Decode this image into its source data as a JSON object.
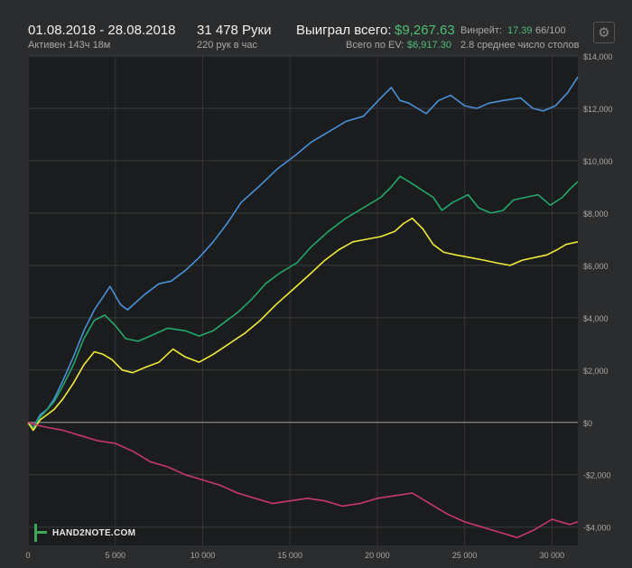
{
  "header": {
    "date_range": "01.08.2018 - 28.08.2018",
    "active_time": "Активен 143ч 18м",
    "hands": "31 478 Руки",
    "hands_per_hour": "220 рук в час",
    "won_total_label": "Выиграл всего:",
    "won_total_value": "$9,267.63",
    "ev_total_label": "Всего по EV:",
    "ev_total_value": "$6,917.30",
    "winrate_label": "Винрейт:",
    "winrate_value": "17.39",
    "winrate_extra": "66/100",
    "avg_tables": "2.8 среднее число столов"
  },
  "logo": {
    "text": "HAND2NOTE.COM"
  },
  "colors": {
    "background": "#2b2c2e",
    "plot_bg": "#1b1c1d",
    "blue": "#4a90d9",
    "green": "#22a86a",
    "yellow": "#f0ea3a",
    "pink": "#c8386e",
    "accent_green": "#4fbf75"
  },
  "chart_data": {
    "type": "line",
    "xlim": [
      0,
      31478
    ],
    "ylim": [
      -4700,
      14000
    ],
    "grid": true,
    "x_ticks": [
      0,
      5000,
      10000,
      15000,
      20000,
      25000,
      30000
    ],
    "x_tick_labels": [
      "0",
      "5 000",
      "10 000",
      "15 000",
      "20 000",
      "25 000",
      "30 000"
    ],
    "y_ticks": [
      -4000,
      -2000,
      0,
      2000,
      4000,
      6000,
      8000,
      10000,
      12000,
      14000
    ],
    "y_tick_labels": [
      "-$4,000",
      "-$2,000",
      "$0",
      "$2,000",
      "$4,000",
      "$6,000",
      "$8,000",
      "$10,000",
      "$12,000",
      "$14,000"
    ],
    "series": [
      {
        "color": "#4a90d9",
        "x": [
          0,
          300,
          700,
          1100,
          1500,
          2000,
          2600,
          3200,
          3800,
          4300,
          4700,
          5300,
          5700,
          6200,
          6700,
          7500,
          8200,
          9000,
          9800,
          10600,
          11400,
          12200,
          13200,
          14300,
          15300,
          16200,
          17200,
          18200,
          19200,
          20200,
          20800,
          21300,
          21800,
          22300,
          22800,
          23500,
          24200,
          25000,
          25700,
          26400,
          27200,
          28200,
          28900,
          29500,
          30200,
          30900,
          31478
        ],
        "y": [
          0,
          -200,
          300,
          500,
          900,
          1600,
          2500,
          3500,
          4300,
          4800,
          5200,
          4500,
          4300,
          4600,
          4900,
          5300,
          5400,
          5800,
          6300,
          6900,
          7600,
          8400,
          9000,
          9700,
          10200,
          10700,
          11100,
          11500,
          11700,
          12400,
          12800,
          12300,
          12200,
          12000,
          11800,
          12300,
          12500,
          12100,
          12000,
          12200,
          12300,
          12400,
          12000,
          11900,
          12100,
          12600,
          13200
        ]
      },
      {
        "color": "#22a86a",
        "x": [
          0,
          300,
          700,
          1100,
          1500,
          2000,
          2600,
          3200,
          3800,
          4400,
          5000,
          5600,
          6300,
          7000,
          8000,
          9000,
          9800,
          10600,
          11400,
          12000,
          12800,
          13600,
          14400,
          15400,
          16200,
          17200,
          18200,
          19200,
          20200,
          20800,
          21300,
          21800,
          22500,
          23200,
          23700,
          24300,
          25200,
          25800,
          26500,
          27200,
          27800,
          28500,
          29200,
          29900,
          30600,
          31000,
          31478
        ],
        "y": [
          0,
          -200,
          200,
          500,
          800,
          1400,
          2200,
          3200,
          3900,
          4100,
          3700,
          3200,
          3100,
          3300,
          3600,
          3500,
          3300,
          3500,
          3900,
          4200,
          4700,
          5300,
          5700,
          6100,
          6700,
          7300,
          7800,
          8200,
          8600,
          9000,
          9400,
          9200,
          8900,
          8600,
          8100,
          8400,
          8700,
          8200,
          8000,
          8100,
          8500,
          8600,
          8700,
          8300,
          8600,
          8900,
          9200
        ]
      },
      {
        "color": "#f0ea3a",
        "x": [
          0,
          300,
          700,
          1100,
          1500,
          2000,
          2600,
          3200,
          3800,
          4300,
          4800,
          5400,
          6000,
          6700,
          7500,
          8300,
          9000,
          9800,
          10600,
          11500,
          12400,
          13300,
          14200,
          15200,
          16200,
          17000,
          17800,
          18600,
          19400,
          20200,
          21000,
          21500,
          22000,
          22600,
          23200,
          23800,
          24500,
          25300,
          26100,
          26800,
          27600,
          28300,
          29000,
          29700,
          30300,
          30800,
          31478
        ],
        "y": [
          0,
          -300,
          100,
          300,
          500,
          900,
          1500,
          2200,
          2700,
          2600,
          2400,
          2000,
          1900,
          2100,
          2300,
          2800,
          2500,
          2300,
          2600,
          3000,
          3400,
          3900,
          4500,
          5100,
          5700,
          6200,
          6600,
          6900,
          7000,
          7100,
          7300,
          7600,
          7800,
          7400,
          6800,
          6500,
          6400,
          6300,
          6200,
          6100,
          6000,
          6200,
          6300,
          6400,
          6600,
          6800,
          6900
        ]
      },
      {
        "color": "#c8386e",
        "x": [
          0,
          500,
          1200,
          2000,
          3000,
          4000,
          5000,
          6000,
          7000,
          8000,
          9000,
          10000,
          11000,
          12000,
          13000,
          14000,
          15000,
          16000,
          17000,
          18000,
          19000,
          20000,
          21000,
          22000,
          23000,
          24000,
          25000,
          26000,
          27000,
          28000,
          29000,
          30000,
          31000,
          31478
        ],
        "y": [
          0,
          -100,
          -200,
          -300,
          -500,
          -700,
          -800,
          -1100,
          -1500,
          -1700,
          -2000,
          -2200,
          -2400,
          -2700,
          -2900,
          -3100,
          -3000,
          -2900,
          -3000,
          -3200,
          -3100,
          -2900,
          -2800,
          -2700,
          -3100,
          -3500,
          -3800,
          -4000,
          -4200,
          -4400,
          -4100,
          -3700,
          -3900,
          -3800
        ]
      }
    ]
  }
}
